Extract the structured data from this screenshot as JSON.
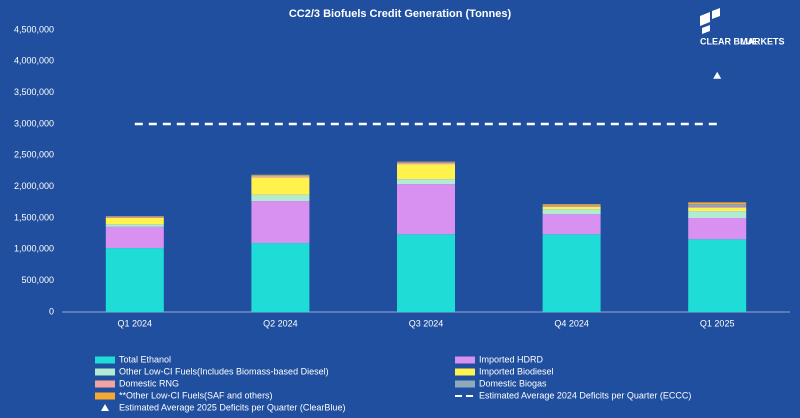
{
  "chart_data": {
    "type": "bar",
    "stacked": true,
    "title": "CC2/3 Biofuels Credit Generation (Tonnes)",
    "categories": [
      "Q1 2024",
      "Q2 2024",
      "Q3 2024",
      "Q4 2024",
      "Q1 2025"
    ],
    "ylim": [
      0,
      4500000
    ],
    "yticks": [
      {
        "value": 0,
        "label": "0"
      },
      {
        "value": 500000,
        "label": "500,000"
      },
      {
        "value": 1000000,
        "label": "1,000,000"
      },
      {
        "value": 1500000,
        "label": "1,500,000"
      },
      {
        "value": 2000000,
        "label": "2,000,000"
      },
      {
        "value": 2500000,
        "label": "2,500,000"
      },
      {
        "value": 3000000,
        "label": "3,000,000"
      },
      {
        "value": 3500000,
        "label": "3,500,000"
      },
      {
        "value": 4000000,
        "label": "4,000,000"
      },
      {
        "value": 4500000,
        "label": "4,500,000"
      }
    ],
    "grid": false,
    "series": [
      {
        "name": "Total Ethanol",
        "color": "#1fdcd6",
        "values": [
          1020000,
          1100000,
          1240000,
          1240000,
          1160000
        ]
      },
      {
        "name": "Imported HDRD",
        "color": "#d891f0",
        "values": [
          340000,
          670000,
          800000,
          320000,
          340000
        ]
      },
      {
        "name": "Other Low-CI Fuels(Includes Biomass-based Diesel)",
        "color": "#b3ead3",
        "values": [
          40000,
          100000,
          80000,
          80000,
          110000
        ]
      },
      {
        "name": "Imported Biodiesel",
        "color": "#fff24d",
        "values": [
          100000,
          280000,
          240000,
          40000,
          50000
        ]
      },
      {
        "name": "Domestic RNG",
        "color": "#f4a3a3",
        "values": [
          10000,
          20000,
          20000,
          10000,
          20000
        ]
      },
      {
        "name": "Domestic Biogas",
        "color": "#8ea9ba",
        "values": [
          10000,
          10000,
          10000,
          10000,
          40000
        ]
      },
      {
        "name": "**Other Low-CI Fuels(SAF and others)",
        "color": "#f6a833",
        "values": [
          10000,
          10000,
          10000,
          20000,
          30000
        ]
      },
      {
        "name": "Estimated Average 2024 Deficits per Quarter (ECCC)",
        "kind": "line",
        "dash": true,
        "color": "#ffffff",
        "values": [
          3000000,
          3000000,
          3000000,
          3000000,
          3000000
        ]
      },
      {
        "name": "Estimated Average 2025 Deficits per Quarter (ClearBlue)",
        "kind": "marker",
        "color": "#ffffff",
        "values": [
          null,
          null,
          null,
          null,
          3770000
        ]
      }
    ],
    "logo": {
      "line1": "CLEAR BLUE",
      "line2": "MARKETS"
    }
  }
}
